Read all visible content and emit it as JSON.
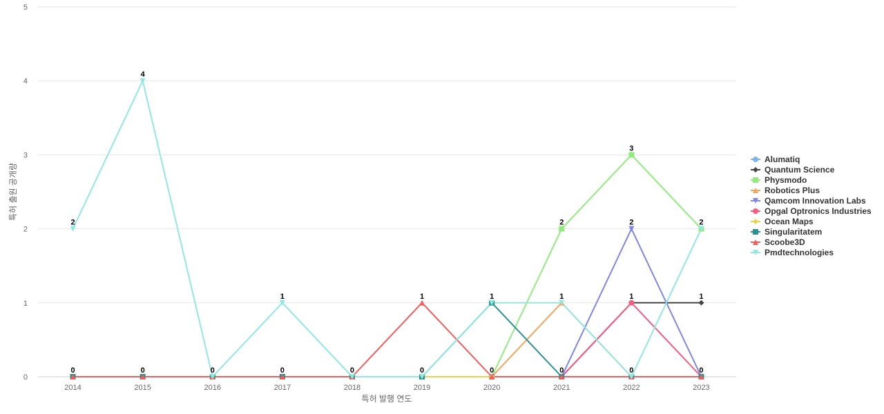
{
  "chart_data": {
    "type": "line",
    "xlabel": "특허 발행 연도",
    "ylabel": "특허 출원 공개량",
    "ylim": [
      0,
      5
    ],
    "yticks": [
      0,
      1,
      2,
      3,
      4,
      5
    ],
    "x": [
      "2014",
      "2015",
      "2016",
      "2017",
      "2018",
      "2019",
      "2020",
      "2021",
      "2022",
      "2023"
    ],
    "grid": true,
    "legend_position": "right",
    "series": [
      {
        "name": "Alumatiq",
        "color": "#7cb5ec",
        "marker": "circle",
        "values": [
          0,
          0,
          0,
          0,
          0,
          0,
          0,
          0,
          0,
          0
        ]
      },
      {
        "name": "Quantum Science",
        "color": "#434348",
        "marker": "diamond",
        "values": [
          0,
          0,
          0,
          0,
          0,
          0,
          0,
          0,
          1,
          1
        ]
      },
      {
        "name": "Physmodo",
        "color": "#90ed7d",
        "marker": "square",
        "values": [
          0,
          0,
          0,
          0,
          0,
          0,
          0,
          2,
          3,
          2
        ]
      },
      {
        "name": "Robotics Plus",
        "color": "#f7a35c",
        "marker": "triangle",
        "values": [
          0,
          0,
          0,
          0,
          0,
          0,
          0,
          1,
          0,
          0
        ]
      },
      {
        "name": "Qamcom Innovation Labs",
        "color": "#8085e9",
        "marker": "triangle-down",
        "values": [
          0,
          0,
          0,
          0,
          0,
          0,
          0,
          0,
          2,
          0
        ]
      },
      {
        "name": "Opgal Optronics Industries",
        "color": "#f15c80",
        "marker": "circle",
        "values": [
          0,
          0,
          0,
          0,
          0,
          0,
          0,
          0,
          1,
          0
        ]
      },
      {
        "name": "Ocean Maps",
        "color": "#e4d354",
        "marker": "diamond",
        "values": [
          0,
          0,
          0,
          0,
          0,
          0,
          0,
          0,
          0,
          0
        ]
      },
      {
        "name": "Singularitatem",
        "color": "#2b908f",
        "marker": "square",
        "values": [
          0,
          0,
          0,
          0,
          0,
          0,
          1,
          0,
          0,
          0
        ]
      },
      {
        "name": "Scoobe3D",
        "color": "#f45b5b",
        "marker": "triangle",
        "values": [
          0,
          0,
          0,
          0,
          0,
          1,
          0,
          0,
          0,
          0
        ]
      },
      {
        "name": "Pmdtechnologies",
        "color": "#91e8e1",
        "marker": "triangle-down",
        "values": [
          2,
          4,
          0,
          1,
          0,
          0,
          1,
          1,
          0,
          2
        ]
      }
    ],
    "data_labels": [
      {
        "x": "2014",
        "value": 2
      },
      {
        "x": "2014",
        "value": 0
      },
      {
        "x": "2015",
        "value": 4
      },
      {
        "x": "2015",
        "value": 0
      },
      {
        "x": "2016",
        "value": 0
      },
      {
        "x": "2017",
        "value": 1
      },
      {
        "x": "2017",
        "value": 0
      },
      {
        "x": "2018",
        "value": 0
      },
      {
        "x": "2019",
        "value": 1
      },
      {
        "x": "2019",
        "value": 0
      },
      {
        "x": "2020",
        "value": 1
      },
      {
        "x": "2020",
        "value": 0
      },
      {
        "x": "2021",
        "value": 2
      },
      {
        "x": "2021",
        "value": 1
      },
      {
        "x": "2021",
        "value": 0
      },
      {
        "x": "2022",
        "value": 3
      },
      {
        "x": "2022",
        "value": 2
      },
      {
        "x": "2022",
        "value": 1
      },
      {
        "x": "2022",
        "value": 0
      },
      {
        "x": "2023",
        "value": 2
      },
      {
        "x": "2023",
        "value": 1
      },
      {
        "x": "2023",
        "value": 0
      }
    ]
  }
}
